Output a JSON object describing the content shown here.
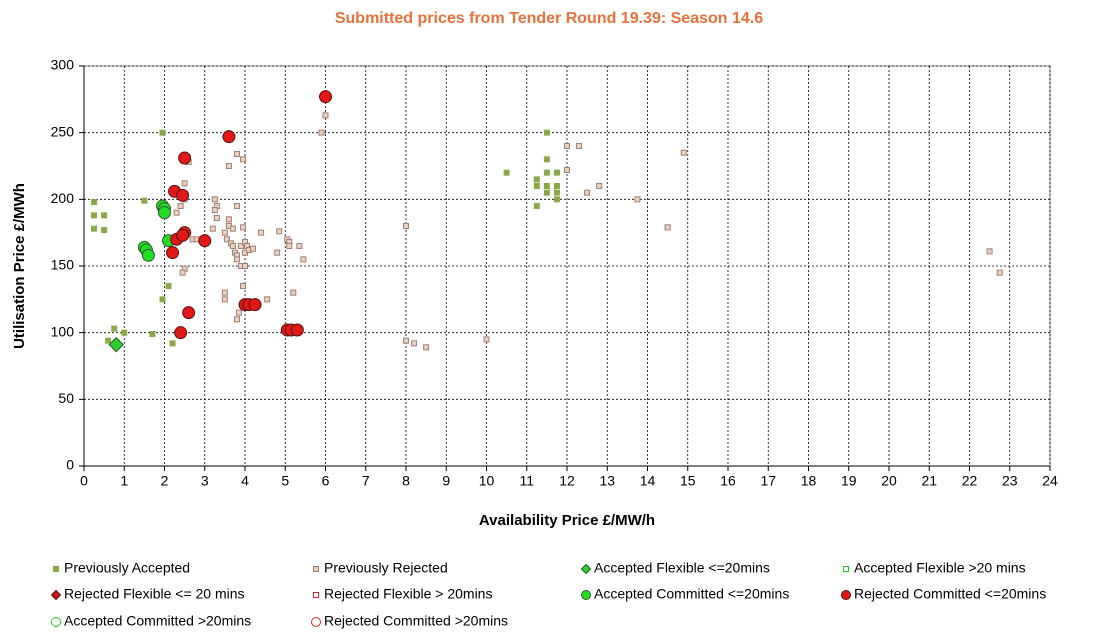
{
  "chart_data": {
    "type": "scatter",
    "title": "Submitted prices from Tender Round 19.39: Season 14.6",
    "x_label": "Availability Price £/MW/h",
    "y_label": "Utilisation Price £/MWh",
    "xlim": [
      0,
      24
    ],
    "ylim": [
      0,
      300
    ],
    "xticks": [
      0,
      1,
      2,
      3,
      4,
      5,
      6,
      7,
      8,
      9,
      10,
      11,
      12,
      13,
      14,
      15,
      16,
      17,
      18,
      19,
      20,
      21,
      22,
      23,
      24
    ],
    "yticks": [
      0,
      50,
      100,
      150,
      200,
      250,
      300
    ],
    "grid": true,
    "series": [
      {
        "name": "Previously Accepted",
        "marker": "square",
        "color": "#8aa84a",
        "edge_color": "#8aa84a",
        "x": [
          0.25,
          0.25,
          0.25,
          0.5,
          0.5,
          0.75,
          0.6,
          1,
          1.5,
          1.95,
          1.95,
          2.1,
          2.2,
          1.7,
          10.5,
          11.25,
          11.25,
          11.25,
          11.5,
          11.5,
          11.5,
          11.5,
          11.5,
          11.75,
          11.75,
          11.75,
          11.75
        ],
        "values": [
          198,
          188,
          178,
          188,
          177,
          103,
          94,
          100,
          199,
          250,
          125,
          135,
          92,
          99,
          220,
          215,
          210,
          195,
          250,
          230,
          220,
          210,
          205,
          220,
          210,
          205,
          200
        ]
      },
      {
        "name": "Previously Rejected",
        "marker": "square",
        "color": "#ead2c2",
        "edge_color": "#a08070",
        "x": [
          2.3,
          2.4,
          2.5,
          2.5,
          2.5,
          2.45,
          2.7,
          2.8,
          2.6,
          3.2,
          3.25,
          3.3,
          3.3,
          3.25,
          3.5,
          3.5,
          3.5,
          3.55,
          3.6,
          3.6,
          3.6,
          3.65,
          3.7,
          3.7,
          3.75,
          3.8,
          3.8,
          3.8,
          3.8,
          3.8,
          3.85,
          3.9,
          3.9,
          3.95,
          3.95,
          3.95,
          4,
          4,
          4,
          4.05,
          4.1,
          4.2,
          4.4,
          4.55,
          4.8,
          4.85,
          5.05,
          5.1,
          5.1,
          5.2,
          5.35,
          5.45,
          5.9,
          6,
          8,
          8,
          8.2,
          8.5,
          10,
          12,
          12,
          12.3,
          12.5,
          12.8,
          13.75,
          14.5,
          14.9,
          22.5,
          22.75
        ],
        "values": [
          190,
          195,
          200,
          212,
          148,
          145,
          170,
          170,
          228,
          178,
          200,
          195,
          186,
          192,
          130,
          125,
          175,
          170,
          185,
          180,
          225,
          167,
          165,
          178,
          160,
          158,
          155,
          195,
          234,
          110,
          115,
          165,
          150,
          230,
          179,
          135,
          168,
          160,
          150,
          165,
          162,
          163,
          175,
          125,
          160,
          176,
          170,
          168,
          165,
          130,
          165,
          155,
          250,
          263,
          180,
          94,
          92,
          89,
          95,
          240,
          222,
          240,
          205,
          210,
          200,
          179,
          235,
          161,
          145
        ]
      },
      {
        "name": "Accepted Flexible <=20mins",
        "marker": "diamond",
        "color": "#33cc33",
        "edge_color": "#1a5c1a",
        "x": [
          0.8
        ],
        "values": [
          91
        ]
      },
      {
        "name": "Accepted Flexible >20 mins",
        "marker": "square-open",
        "color": "#ffffff",
        "edge_color": "#22cc22",
        "x": [],
        "values": []
      },
      {
        "name": "Rejected Flexible <= 20 mins",
        "marker": "diamond",
        "color": "#cc1111",
        "edge_color": "#551111",
        "x": [],
        "values": []
      },
      {
        "name": "Rejected Flexible > 20mins",
        "marker": "square-open",
        "color": "#ffffff",
        "edge_color": "#dd2222",
        "x": [],
        "values": []
      },
      {
        "name": "Accepted Committed <=20mins",
        "marker": "circle",
        "color": "#22dd22",
        "edge_color": "#335533",
        "x": [
          1.5,
          1.55,
          1.6,
          1.95,
          2,
          2,
          2.1
        ],
        "values": [
          164,
          162,
          158,
          195,
          193,
          190,
          169
        ]
      },
      {
        "name": "Rejected Committed <=20mins",
        "marker": "circle",
        "color": "#e01818",
        "edge_color": "#551111",
        "x": [
          2.25,
          2.45,
          2.5,
          3.6,
          6,
          2.3,
          2.5,
          2.45,
          2.2,
          3,
          2.4,
          2.6,
          4,
          4.1,
          4.25,
          5.05,
          5.15,
          5.3
        ],
        "values": [
          206,
          203,
          231,
          247,
          277,
          170,
          175,
          173,
          160,
          169,
          100,
          115,
          121,
          121,
          121,
          102,
          102,
          102
        ]
      },
      {
        "name": "Accepted Committed >20mins",
        "marker": "circle-open",
        "color": "#ffffff",
        "edge_color": "#22cc22",
        "x": [],
        "values": []
      },
      {
        "name": "Rejected Committed >20mins",
        "marker": "circle-open",
        "color": "#ffffff",
        "edge_color": "#dd2222",
        "x": [],
        "values": []
      }
    ]
  }
}
